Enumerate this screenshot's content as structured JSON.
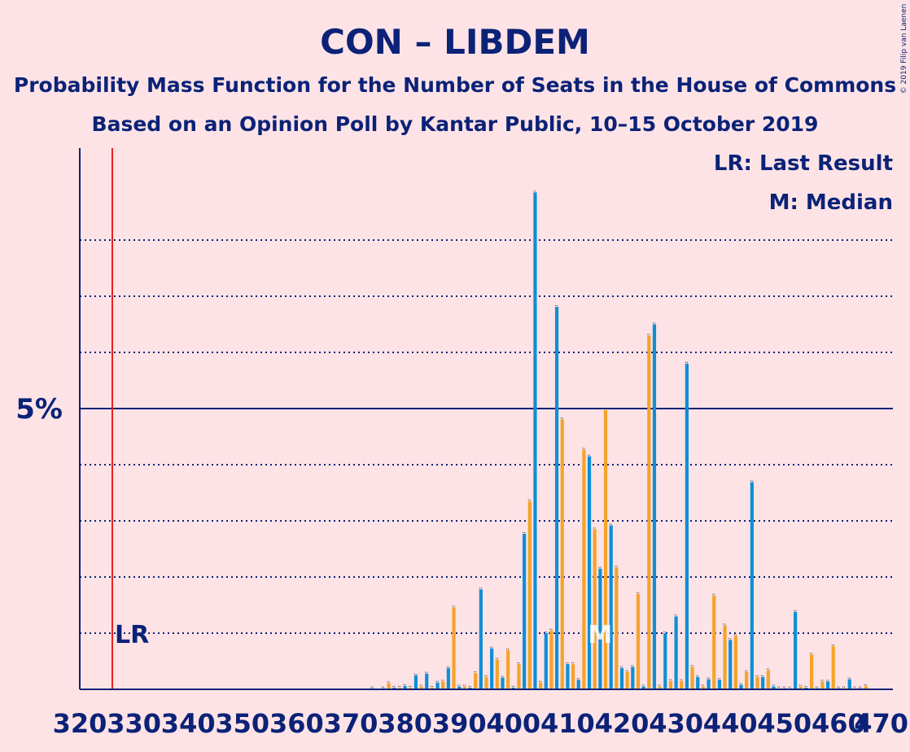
{
  "title": "CON – LIBDEM",
  "subtitle1": "Probability Mass Function for the Number of Seats in the House of Commons",
  "subtitle2": "Based on an Opinion Poll by Kantar Public, 10–15 October 2019",
  "legend": {
    "lr": "LR: Last Result",
    "m": "M: Median"
  },
  "copyright": "© 2019 Filip van Laenen",
  "markers": {
    "lr_label": "LR",
    "m_label": "M"
  },
  "colors": {
    "background": "#fde3e6",
    "con": "#0e8fd6",
    "libdem": "#f5a32b",
    "axis": "#0b2277",
    "lr_line": "#e3211c"
  },
  "chart_data": {
    "type": "bar",
    "xlim": [
      320,
      470
    ],
    "x_ticks": [
      320,
      330,
      340,
      350,
      360,
      370,
      380,
      390,
      400,
      410,
      420,
      430,
      440,
      450,
      460,
      470
    ],
    "x_tick_labels": [
      "320",
      "330",
      "340",
      "350",
      "360",
      "370",
      "380",
      "390",
      "400",
      "410",
      "420",
      "430",
      "440",
      "450",
      "460",
      "470"
    ],
    "ylim": [
      0,
      9.6
    ],
    "y_gridlines": [
      1,
      2,
      3,
      4,
      6,
      7,
      8
    ],
    "y_major": 5,
    "y_major_label": "5%",
    "last_result": 326,
    "median": 416,
    "series": [
      {
        "color": "#0e8fd6",
        "points": [
          [
            374,
            0.02
          ],
          [
            376,
            0.02
          ],
          [
            378,
            0.03
          ],
          [
            380,
            0.06
          ],
          [
            382,
            0.25
          ],
          [
            384,
            0.28
          ],
          [
            386,
            0.12
          ],
          [
            388,
            0.38
          ],
          [
            390,
            0.05
          ],
          [
            392,
            0.03
          ],
          [
            394,
            1.78
          ],
          [
            396,
            0.73
          ],
          [
            398,
            0.21
          ],
          [
            400,
            0.03
          ],
          [
            402,
            2.77
          ],
          [
            404,
            8.85
          ],
          [
            406,
            1.0
          ],
          [
            408,
            6.81
          ],
          [
            410,
            0.45
          ],
          [
            412,
            0.17
          ],
          [
            414,
            4.15
          ],
          [
            416,
            2.15
          ],
          [
            418,
            2.92
          ],
          [
            420,
            0.38
          ],
          [
            422,
            0.4
          ],
          [
            424,
            0.05
          ],
          [
            426,
            6.5
          ],
          [
            428,
            1.0
          ],
          [
            430,
            1.3
          ],
          [
            432,
            5.8
          ],
          [
            434,
            0.22
          ],
          [
            436,
            0.18
          ],
          [
            438,
            0.17
          ],
          [
            440,
            0.88
          ],
          [
            442,
            0.08
          ],
          [
            444,
            3.69
          ],
          [
            446,
            0.22
          ],
          [
            448,
            0.05
          ],
          [
            450,
            0.02
          ],
          [
            452,
            1.38
          ],
          [
            454,
            0.03
          ],
          [
            456,
            0.02
          ],
          [
            458,
            0.14
          ],
          [
            460,
            0.02
          ],
          [
            462,
            0.18
          ],
          [
            464,
            0.02
          ]
        ]
      },
      {
        "color": "#f5a32b",
        "points": [
          [
            377,
            0.11
          ],
          [
            379,
            0.03
          ],
          [
            381,
            0.03
          ],
          [
            383,
            0.05
          ],
          [
            385,
            0.03
          ],
          [
            387,
            0.14
          ],
          [
            389,
            1.46
          ],
          [
            391,
            0.05
          ],
          [
            393,
            0.29
          ],
          [
            395,
            0.22
          ],
          [
            397,
            0.53
          ],
          [
            399,
            0.7
          ],
          [
            401,
            0.45
          ],
          [
            403,
            3.35
          ],
          [
            405,
            0.12
          ],
          [
            407,
            1.05
          ],
          [
            409,
            4.81
          ],
          [
            411,
            0.45
          ],
          [
            413,
            4.27
          ],
          [
            415,
            2.85
          ],
          [
            417,
            4.97
          ],
          [
            419,
            2.17
          ],
          [
            421,
            0.31
          ],
          [
            423,
            1.7
          ],
          [
            425,
            6.3
          ],
          [
            427,
            0.05
          ],
          [
            429,
            0.15
          ],
          [
            431,
            0.15
          ],
          [
            433,
            0.4
          ],
          [
            435,
            0.05
          ],
          [
            437,
            1.67
          ],
          [
            439,
            1.14
          ],
          [
            441,
            0.95
          ],
          [
            443,
            0.31
          ],
          [
            445,
            0.22
          ],
          [
            447,
            0.34
          ],
          [
            449,
            0.02
          ],
          [
            451,
            0.02
          ],
          [
            453,
            0.05
          ],
          [
            455,
            0.62
          ],
          [
            457,
            0.14
          ],
          [
            459,
            0.77
          ],
          [
            461,
            0.02
          ],
          [
            463,
            0.02
          ],
          [
            465,
            0.06
          ]
        ]
      }
    ]
  }
}
